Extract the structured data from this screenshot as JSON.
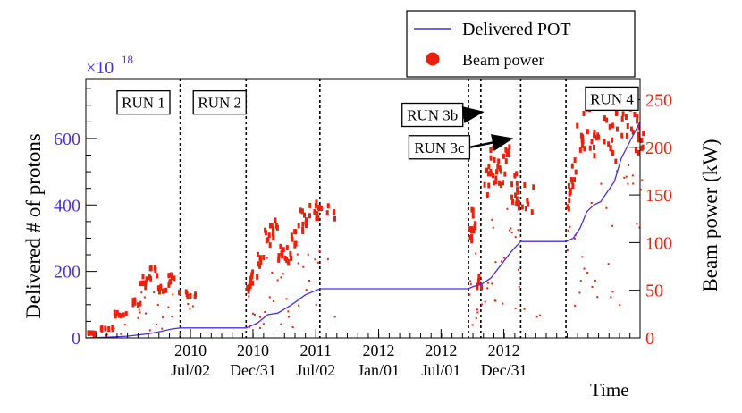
{
  "chart_data": {
    "type": "line",
    "title": "",
    "xlabel": "Time",
    "ylabel_left": "Delivered # of protons",
    "ylabel_right": "Beam power (kW)",
    "left_axis_exponent": "×10",
    "left_axis_exponent_power": "18",
    "ylim_left": [
      0,
      780
    ],
    "ylim_right": [
      0,
      272
    ],
    "x_range_days": [
      0,
      1615
    ],
    "x_ticks": [
      {
        "day": 305,
        "year": "2010",
        "date": "Jul/02"
      },
      {
        "day": 487,
        "year": "2010",
        "date": "Dec/31"
      },
      {
        "day": 670,
        "year": "2011",
        "date": "Jul/02"
      },
      {
        "day": 853,
        "year": "2012",
        "date": "Jan/01"
      },
      {
        "day": 1035,
        "year": "2012",
        "date": "Jul/01"
      },
      {
        "day": 1218,
        "year": "2012",
        "date": "Dec/31"
      }
    ],
    "y_ticks_left": [
      "0",
      "200",
      "400",
      "600"
    ],
    "y_ticks_right": [
      "0",
      "50",
      "100",
      "150",
      "200",
      "250"
    ],
    "legend": {
      "placement": "top-right",
      "entries": [
        {
          "label": "Delivered POT",
          "style": "line",
          "color": "#4b2fe6"
        },
        {
          "label": "Beam power",
          "style": "marker",
          "color": "#e8200c"
        }
      ]
    },
    "run_boundaries_days": [
      275,
      467,
      682,
      1115,
      1151,
      1267,
      1399
    ],
    "run_labels": [
      {
        "label": "RUN 1",
        "day": 168,
        "kw": 247
      },
      {
        "label": "RUN 2",
        "day": 390,
        "kw": 247
      },
      {
        "label": "RUN 3b",
        "day": 1010,
        "kw": 234,
        "arrow_to_day": 1155,
        "arrow_to_kw": 237
      },
      {
        "label": "RUN 3c",
        "day": 1030,
        "kw": 200,
        "arrow_to_day": 1240,
        "arrow_to_kw": 209
      },
      {
        "label": "RUN 4",
        "day": 1600,
        "kw": 251
      }
    ],
    "series": [
      {
        "name": "Delivered POT",
        "axis": "left",
        "color": "#4b2fe6",
        "x": [
          0,
          60,
          120,
          180,
          220,
          250,
          275,
          467,
          500,
          530,
          560,
          600,
          640,
          682,
          1115,
          1130,
          1151,
          1180,
          1210,
          1240,
          1267,
          1399,
          1420,
          1440,
          1460,
          1480,
          1500,
          1520,
          1540,
          1560,
          1600,
          1615
        ],
        "values": [
          0,
          2,
          5,
          12,
          20,
          27,
          30,
          30,
          45,
          70,
          75,
          100,
          130,
          148,
          148,
          155,
          160,
          180,
          220,
          260,
          290,
          290,
          300,
          330,
          380,
          400,
          410,
          440,
          470,
          540,
          620,
          650
        ]
      },
      {
        "name": "Beam power",
        "axis": "right",
        "color": "#e8200c",
        "x": [
          5,
          40,
          80,
          130,
          160,
          185,
          210,
          240,
          265,
          470,
          480,
          500,
          520,
          540,
          560,
          580,
          600,
          620,
          640,
          665,
          680,
          1118,
          1125,
          1140,
          1160,
          1175,
          1190,
          1205,
          1220,
          1240,
          1255,
          1265,
          1402,
          1415,
          1430,
          1450,
          1475,
          1500,
          1525,
          1545,
          1570,
          1590,
          1610
        ],
        "values": [
          5,
          10,
          25,
          38,
          60,
          70,
          55,
          62,
          45,
          55,
          65,
          85,
          110,
          115,
          90,
          88,
          110,
          125,
          130,
          135,
          140,
          110,
          125,
          60,
          170,
          185,
          180,
          178,
          190,
          160,
          155,
          150,
          150,
          175,
          215,
          225,
          215,
          225,
          210,
          235,
          240,
          220,
          225
        ]
      }
    ]
  }
}
